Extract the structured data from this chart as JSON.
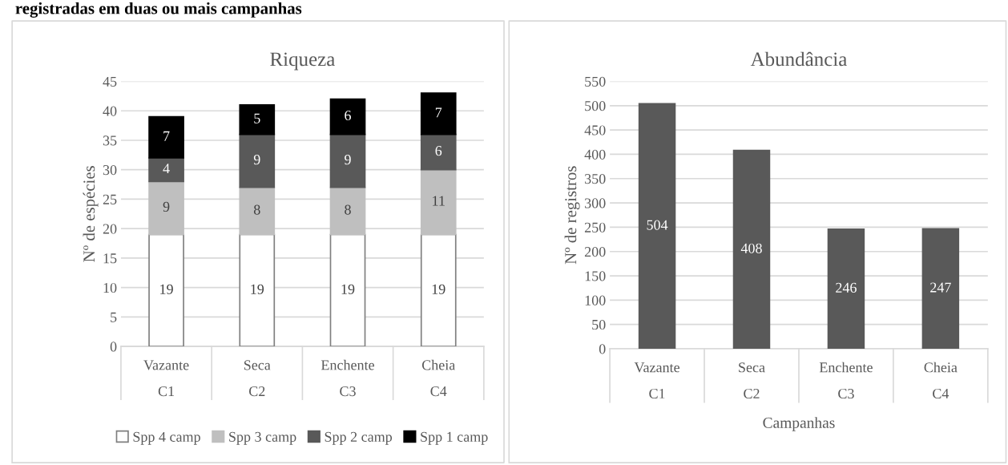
{
  "chart_data": [
    {
      "type": "bar",
      "title": "Riqueza",
      "ylabel": "Nº de espécies",
      "annotations": [
        "registradas em duas ou mais campanhas"
      ],
      "categories": [
        "Vazante\nC1",
        "Seca\nC2",
        "Enchente\nC3",
        "Cheia\nC4"
      ],
      "stacked": true,
      "data_labels": true,
      "grid": "y",
      "legend": "bottom",
      "ylim": [
        0,
        45
      ],
      "yticks": [
        0,
        5,
        10,
        15,
        20,
        25,
        30,
        35,
        40,
        45
      ],
      "series": [
        {
          "name": "Spp 4 camp",
          "color": "#ffffff",
          "values": [
            19,
            19,
            19,
            19
          ]
        },
        {
          "name": "Spp 3 camp",
          "color": "#bfbfbf",
          "values": [
            9,
            8,
            8,
            11
          ]
        },
        {
          "name": "Spp 2 camp",
          "color": "#595959",
          "values": [
            4,
            9,
            9,
            6
          ]
        },
        {
          "name": "Spp 1 camp",
          "color": "#000000",
          "values": [
            7,
            5,
            6,
            7
          ]
        }
      ]
    },
    {
      "type": "bar",
      "title": "Abundância",
      "ylabel": "Nº de registros",
      "xlabel": "Campanhas",
      "categories": [
        "Vazante\nC1",
        "Seca\nC2",
        "Enchente\nC3",
        "Cheia\nC4"
      ],
      "data_labels": true,
      "grid": "y",
      "ylim": [
        0,
        550
      ],
      "yticks": [
        0,
        50,
        100,
        150,
        200,
        250,
        300,
        350,
        400,
        450,
        500,
        550
      ],
      "series": [
        {
          "color": "#595959",
          "values": [
            504,
            408,
            246,
            247
          ]
        }
      ]
    }
  ]
}
